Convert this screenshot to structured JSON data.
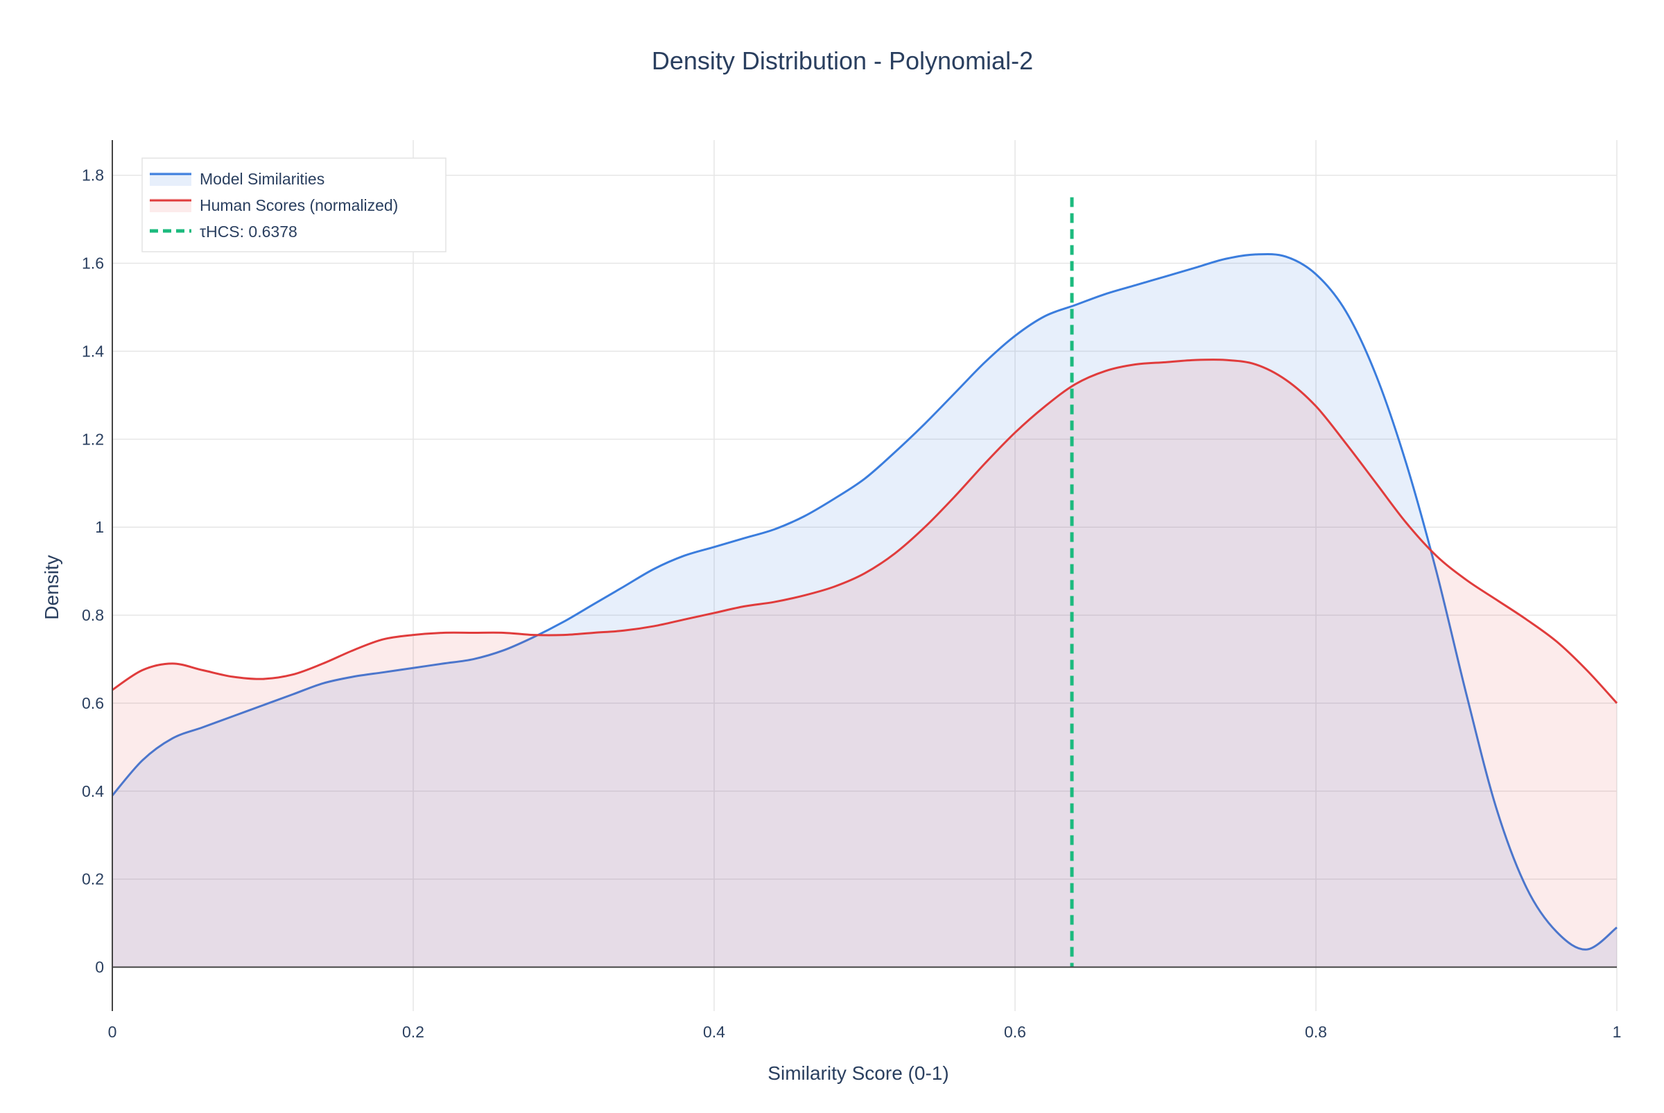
{
  "chart_data": {
    "type": "area",
    "title": "Density Distribution - Polynomial-2",
    "xlabel": "Similarity Score (0-1)",
    "ylabel": "Density",
    "xlim": [
      0,
      1
    ],
    "ylim": [
      -0.1,
      1.88
    ],
    "x_ticks": [
      0,
      0.2,
      0.4,
      0.6,
      0.8,
      1
    ],
    "x_tick_labels": [
      "0",
      "0.2",
      "0.4",
      "0.6",
      "0.8",
      "1"
    ],
    "y_ticks": [
      0,
      0.2,
      0.4,
      0.6,
      0.8,
      1,
      1.2,
      1.4,
      1.6,
      1.8
    ],
    "y_tick_labels": [
      "0",
      "0.2",
      "0.4",
      "0.6",
      "0.8",
      "1",
      "1.2",
      "1.4",
      "1.6",
      "1.8"
    ],
    "grid": true,
    "legend_position": "top-left",
    "x": [
      0,
      0.02,
      0.04,
      0.06,
      0.08,
      0.1,
      0.12,
      0.14,
      0.16,
      0.18,
      0.2,
      0.22,
      0.24,
      0.26,
      0.28,
      0.3,
      0.32,
      0.34,
      0.36,
      0.38,
      0.4,
      0.42,
      0.44,
      0.46,
      0.48,
      0.5,
      0.52,
      0.54,
      0.56,
      0.58,
      0.6,
      0.62,
      0.64,
      0.66,
      0.68,
      0.7,
      0.72,
      0.74,
      0.76,
      0.78,
      0.8,
      0.82,
      0.84,
      0.86,
      0.88,
      0.9,
      0.92,
      0.94,
      0.96,
      0.98,
      1
    ],
    "series": [
      {
        "name": "Model Similarities",
        "color": "#3b7ddd",
        "fill": "rgba(59,125,221,0.12)",
        "values": [
          0.39,
          0.47,
          0.52,
          0.545,
          0.57,
          0.595,
          0.62,
          0.645,
          0.66,
          0.67,
          0.68,
          0.69,
          0.7,
          0.72,
          0.75,
          0.785,
          0.825,
          0.865,
          0.905,
          0.935,
          0.955,
          0.975,
          0.995,
          1.025,
          1.065,
          1.11,
          1.17,
          1.235,
          1.305,
          1.375,
          1.435,
          1.48,
          1.505,
          1.53,
          1.55,
          1.57,
          1.59,
          1.61,
          1.62,
          1.615,
          1.575,
          1.49,
          1.345,
          1.145,
          0.9,
          0.62,
          0.36,
          0.18,
          0.08,
          0.04,
          0.09
        ]
      },
      {
        "name": "Human Scores (normalized)",
        "color": "#e03c3c",
        "fill": "rgba(224,60,60,0.1)",
        "values": [
          0.63,
          0.675,
          0.69,
          0.675,
          0.66,
          0.655,
          0.665,
          0.69,
          0.72,
          0.745,
          0.755,
          0.76,
          0.76,
          0.76,
          0.755,
          0.755,
          0.76,
          0.765,
          0.775,
          0.79,
          0.805,
          0.82,
          0.83,
          0.845,
          0.865,
          0.895,
          0.94,
          1.0,
          1.07,
          1.145,
          1.215,
          1.275,
          1.325,
          1.355,
          1.37,
          1.375,
          1.38,
          1.38,
          1.37,
          1.335,
          1.275,
          1.19,
          1.1,
          1.01,
          0.935,
          0.88,
          0.835,
          0.79,
          0.74,
          0.675,
          0.6
        ]
      }
    ],
    "threshold": {
      "name": "τHCS: 0.6378",
      "x": 0.6378,
      "y_top": 1.75,
      "color": "#1cba7e"
    }
  }
}
